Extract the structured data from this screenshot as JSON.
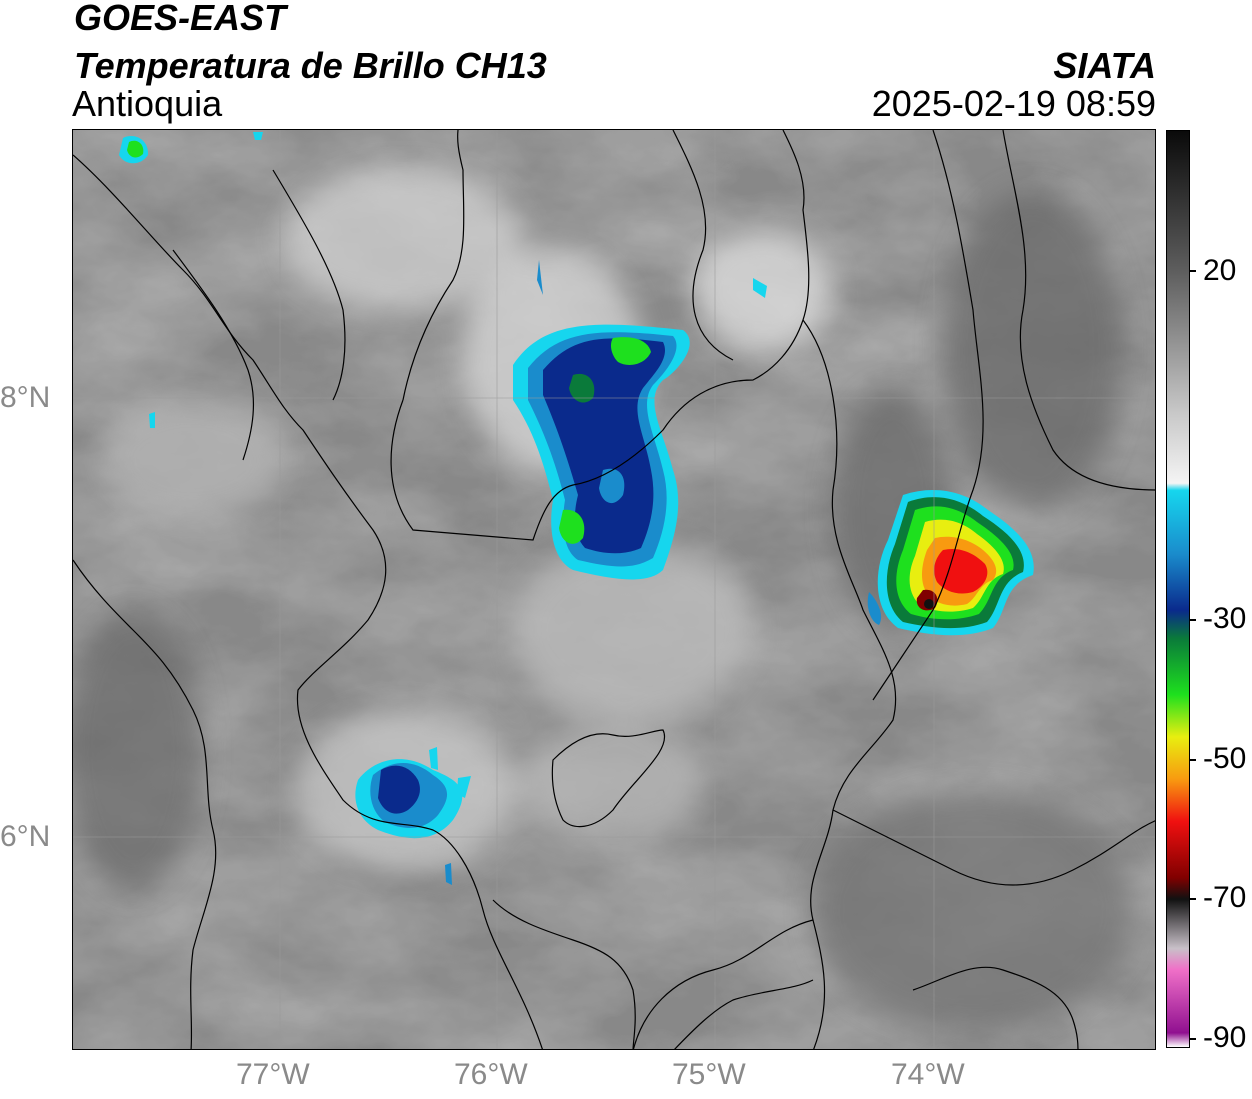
{
  "header": {
    "satellite": "GOES-EAST",
    "product": "Temperatura de Brillo CH13",
    "region": "Antioquia",
    "agency": "SIATA",
    "datetime": "2025-02-19 08:59"
  },
  "map": {
    "lat_ticks": [
      {
        "value": 8,
        "label": "8°N"
      },
      {
        "value": 6,
        "label": "6°N"
      }
    ],
    "lon_ticks": [
      {
        "value": -77,
        "label": "77°W"
      },
      {
        "value": -76,
        "label": "76°W"
      },
      {
        "value": -75,
        "label": "75°W"
      },
      {
        "value": -74,
        "label": "74°W"
      }
    ],
    "gridlines": true
  },
  "colorbar": {
    "ticks": [
      {
        "value": 20,
        "label": "20"
      },
      {
        "value": -30,
        "label": "-30"
      },
      {
        "value": -50,
        "label": "-50"
      },
      {
        "value": -70,
        "label": "-70"
      },
      {
        "value": -90,
        "label": "-90"
      }
    ],
    "stops": [
      {
        "value": 40,
        "color": "#0a0a0a"
      },
      {
        "value": 20,
        "color": "#5e5e5e"
      },
      {
        "value": 0,
        "color": "#c8c8c8"
      },
      {
        "value": -10,
        "color": "#f4f4f4"
      },
      {
        "value": -11,
        "color": "#16d6ee"
      },
      {
        "value": -20,
        "color": "#1a8ccc"
      },
      {
        "value": -28,
        "color": "#0a2a8c"
      },
      {
        "value": -32,
        "color": "#0a7a3a"
      },
      {
        "value": -40,
        "color": "#1ee01e"
      },
      {
        "value": -46,
        "color": "#e8ee10"
      },
      {
        "value": -52,
        "color": "#f89a10"
      },
      {
        "value": -58,
        "color": "#f01010"
      },
      {
        "value": -66,
        "color": "#800000"
      },
      {
        "value": -69,
        "color": "#111111"
      },
      {
        "value": -76,
        "color": "#c8c0c8"
      },
      {
        "value": -79,
        "color": "#f070c8"
      },
      {
        "value": -88,
        "color": "#901090"
      },
      {
        "value": -90,
        "color": "#ffffff"
      }
    ]
  }
}
